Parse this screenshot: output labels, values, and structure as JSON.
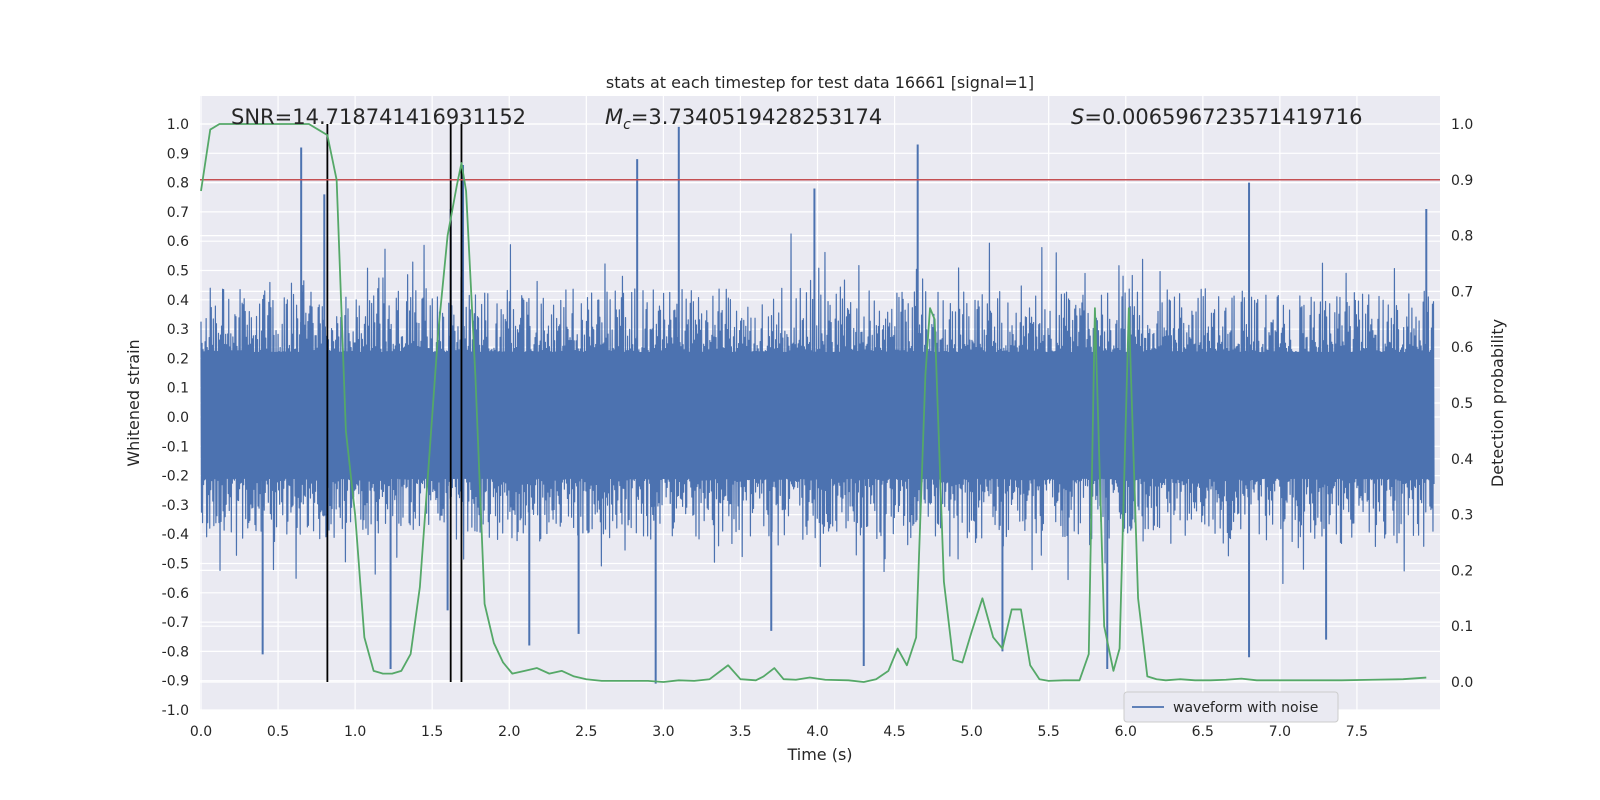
{
  "chart_data": {
    "type": "line",
    "title": "stats at each timestep for test data 16661 [signal=1]",
    "xlabel": "Time (s)",
    "ylabel": "Whitened strain",
    "ylabel_right": "Detection probability",
    "xlim": [
      0.0,
      8.0
    ],
    "ylim": [
      -1.0,
      1.0
    ],
    "ylim_right": [
      -0.045,
      1.045
    ],
    "x_ticks": [
      "0.0",
      "0.5",
      "1.0",
      "1.5",
      "2.0",
      "2.5",
      "3.0",
      "3.5",
      "4.0",
      "4.5",
      "5.0",
      "5.5",
      "6.0",
      "6.5",
      "7.0",
      "7.5"
    ],
    "y_ticks": [
      "-1.0",
      "-0.9",
      "-0.8",
      "-0.7",
      "-0.6",
      "-0.5",
      "-0.4",
      "-0.3",
      "-0.2",
      "-0.1",
      "0.0",
      "0.1",
      "0.2",
      "0.3",
      "0.4",
      "0.5",
      "0.6",
      "0.7",
      "0.8",
      "0.9",
      "1.0"
    ],
    "y_ticks_right": [
      "0.0",
      "0.1",
      "0.2",
      "0.3",
      "0.4",
      "0.5",
      "0.6",
      "0.7",
      "0.8",
      "0.9",
      "1.0"
    ],
    "grid": true,
    "legend": {
      "position": "bottom-right",
      "entries": [
        "waveform with noise"
      ]
    },
    "annotations": {
      "snr": "SNR=14.718741416931152",
      "mc": "=3.7340519428253174",
      "s": "=0.006596723571419716"
    },
    "threshold": {
      "value_right": 0.9,
      "color": "#c44e52"
    },
    "vlines": [
      0.82,
      1.62,
      1.69
    ],
    "series": [
      {
        "name": "waveform with noise",
        "color": "#4c72b0",
        "envelope_upper": 0.4,
        "envelope_lower": -0.38,
        "peaks": [
          [
            0.65,
            0.92
          ],
          [
            0.8,
            0.76
          ],
          [
            1.62,
            0.71
          ],
          [
            1.7,
            0.86
          ],
          [
            2.83,
            0.88
          ],
          [
            3.1,
            0.99
          ],
          [
            3.98,
            0.78
          ],
          [
            4.65,
            0.93
          ],
          [
            6.8,
            0.8
          ],
          [
            7.95,
            0.71
          ]
        ],
        "troughs": [
          [
            0.4,
            -0.81
          ],
          [
            1.23,
            -0.86
          ],
          [
            1.6,
            -0.66
          ],
          [
            2.13,
            -0.78
          ],
          [
            2.45,
            -0.74
          ],
          [
            2.95,
            -0.91
          ],
          [
            3.7,
            -0.73
          ],
          [
            4.3,
            -0.85
          ],
          [
            5.2,
            -0.8
          ],
          [
            5.88,
            -0.86
          ],
          [
            6.8,
            -0.82
          ],
          [
            7.3,
            -0.76
          ]
        ]
      },
      {
        "name": "Detection probability",
        "color": "#55a868",
        "axis": "right",
        "x": [
          0.0,
          0.06,
          0.12,
          0.25,
          0.4,
          0.55,
          0.7,
          0.76,
          0.82,
          0.88,
          0.94,
          1.0,
          1.06,
          1.12,
          1.18,
          1.24,
          1.3,
          1.36,
          1.42,
          1.48,
          1.54,
          1.6,
          1.66,
          1.69,
          1.72,
          1.78,
          1.84,
          1.9,
          1.96,
          2.02,
          2.1,
          2.18,
          2.26,
          2.34,
          2.42,
          2.5,
          2.6,
          2.75,
          2.9,
          3.0,
          3.1,
          3.2,
          3.3,
          3.42,
          3.5,
          3.6,
          3.65,
          3.72,
          3.78,
          3.86,
          3.95,
          4.05,
          4.2,
          4.3,
          4.38,
          4.46,
          4.52,
          4.58,
          4.64,
          4.7,
          4.73,
          4.76,
          4.82,
          4.88,
          4.94,
          5.0,
          5.07,
          5.14,
          5.2,
          5.26,
          5.32,
          5.38,
          5.44,
          5.5,
          5.6,
          5.7,
          5.76,
          5.8,
          5.86,
          5.92,
          5.96,
          6.02,
          6.08,
          6.14,
          6.2,
          6.26,
          6.35,
          6.45,
          6.55,
          6.65,
          6.75,
          6.85,
          7.0,
          7.2,
          7.4,
          7.6,
          7.8,
          7.95
        ],
        "y": [
          0.88,
          0.99,
          1.0,
          1.0,
          1.0,
          1.0,
          1.0,
          0.99,
          0.98,
          0.9,
          0.45,
          0.3,
          0.08,
          0.02,
          0.015,
          0.015,
          0.02,
          0.05,
          0.17,
          0.4,
          0.63,
          0.8,
          0.89,
          0.93,
          0.88,
          0.55,
          0.14,
          0.07,
          0.035,
          0.015,
          0.02,
          0.025,
          0.015,
          0.02,
          0.01,
          0.005,
          0.002,
          0.002,
          0.002,
          0.0,
          0.003,
          0.002,
          0.005,
          0.03,
          0.005,
          0.003,
          0.01,
          0.025,
          0.005,
          0.004,
          0.008,
          0.004,
          0.003,
          0.0,
          0.005,
          0.02,
          0.06,
          0.03,
          0.08,
          0.55,
          0.67,
          0.65,
          0.18,
          0.04,
          0.035,
          0.09,
          0.15,
          0.08,
          0.06,
          0.13,
          0.13,
          0.03,
          0.005,
          0.002,
          0.003,
          0.003,
          0.05,
          0.67,
          0.1,
          0.02,
          0.06,
          0.67,
          0.15,
          0.01,
          0.005,
          0.003,
          0.005,
          0.003,
          0.003,
          0.004,
          0.006,
          0.003,
          0.003,
          0.003,
          0.003,
          0.004,
          0.005,
          0.008
        ]
      }
    ]
  }
}
